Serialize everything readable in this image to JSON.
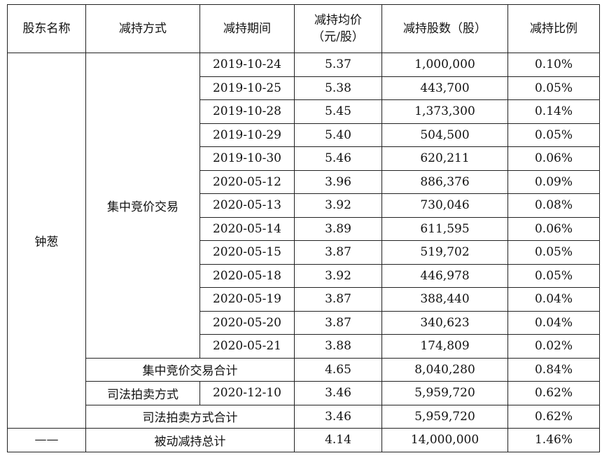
{
  "headers": [
    "股东名称",
    "减持方式",
    "减持期间",
    "减持均价\n（元/股）",
    "减持股数（股）",
    "减持比例"
  ],
  "shareholder": "钟葱",
  "method_centralized": "集中竞价交易",
  "rows": [
    {
      "date": "2019-10-24",
      "price": "5.37",
      "shares": "1,000,000",
      "ratio": "0.10%"
    },
    {
      "date": "2019-10-25",
      "price": "5.38",
      "shares": "443,700",
      "ratio": "0.05%"
    },
    {
      "date": "2019-10-28",
      "price": "5.45",
      "shares": "1,373,300",
      "ratio": "0.14%"
    },
    {
      "date": "2019-10-29",
      "price": "5.40",
      "shares": "504,500",
      "ratio": "0.05%"
    },
    {
      "date": "2019-10-30",
      "price": "5.46",
      "shares": "620,211",
      "ratio": "0.06%"
    },
    {
      "date": "2020-05-12",
      "price": "3.96",
      "shares": "886,376",
      "ratio": "0.09%"
    },
    {
      "date": "2020-05-13",
      "price": "3.92",
      "shares": "730,046",
      "ratio": "0.08%"
    },
    {
      "date": "2020-05-14",
      "price": "3.89",
      "shares": "611,595",
      "ratio": "0.06%"
    },
    {
      "date": "2020-05-15",
      "price": "3.87",
      "shares": "519,702",
      "ratio": "0.05%"
    },
    {
      "date": "2020-05-18",
      "price": "3.92",
      "shares": "446,978",
      "ratio": "0.05%"
    },
    {
      "date": "2020-05-19",
      "price": "3.87",
      "shares": "388,440",
      "ratio": "0.04%"
    },
    {
      "date": "2020-05-20",
      "price": "3.87",
      "shares": "340,623",
      "ratio": "0.04%"
    },
    {
      "date": "2020-05-21",
      "price": "3.88",
      "shares": "174,809",
      "ratio": "0.02%"
    }
  ],
  "centralized_total": {
    "label": "集中竞价交易合计",
    "price": "4.65",
    "shares": "8,040,280",
    "ratio": "0.84%"
  },
  "judicial": {
    "method": "司法拍卖方式",
    "date": "2020-12-10",
    "price": "3.46",
    "shares": "5,959,720",
    "ratio": "0.62%"
  },
  "judicial_total": {
    "label": "司法拍卖方式合计",
    "price": "3.46",
    "shares": "5,959,720",
    "ratio": "0.62%"
  },
  "grand_total": {
    "name": "——",
    "label": "被动减持总计",
    "price": "4.14",
    "shares": "14,000,000",
    "ratio": "1.46%"
  }
}
